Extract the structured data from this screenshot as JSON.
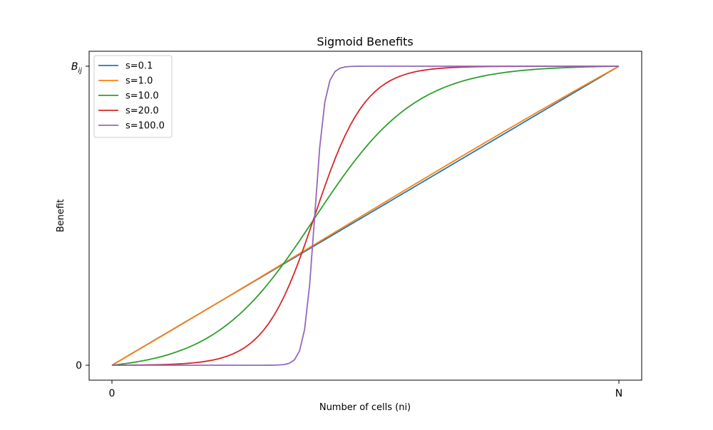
{
  "chart_data": {
    "type": "line",
    "title": "Sigmoid Benefits",
    "xlabel": "Number of cells (ni)",
    "ylabel": "Benefit",
    "xlim": [
      -0.045,
      1.045
    ],
    "ylim": [
      -0.05,
      1.05
    ],
    "x_ticks": [
      {
        "value": 0,
        "label": "0"
      },
      {
        "value": 1,
        "label": "N"
      }
    ],
    "y_ticks": [
      {
        "value": 0,
        "label": "0"
      },
      {
        "value": 1,
        "label": "B"
      }
    ],
    "y_top_tick_subscript": "ij",
    "legend_position": "upper-left",
    "grid": false,
    "sigmoid_center": 0.4,
    "series": [
      {
        "name": "s=0.1",
        "s": 0.1,
        "color": "#1f77b4"
      },
      {
        "name": "s=1.0",
        "s": 1.0,
        "color": "#ff7f0e"
      },
      {
        "name": "s=10.0",
        "s": 10.0,
        "color": "#2ca02c"
      },
      {
        "name": "s=20.0",
        "s": 20.0,
        "color": "#d62728"
      },
      {
        "name": "s=100.0",
        "s": 100.0,
        "color": "#9467bd"
      }
    ]
  }
}
